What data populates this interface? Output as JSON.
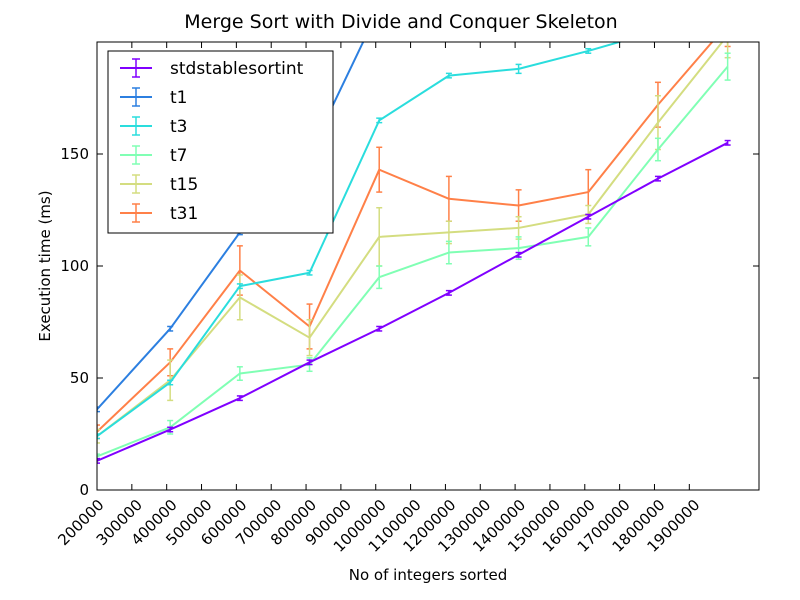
{
  "chart_data": {
    "type": "line",
    "title": "Merge Sort with Divide and Conquer Skeleton",
    "xlabel": "No of integers sorted",
    "ylabel": "Execution time (ms)",
    "xlim": [
      200000,
      2100000
    ],
    "ylim": [
      0,
      200
    ],
    "x_ticks": [
      200000,
      300000,
      400000,
      500000,
      600000,
      700000,
      800000,
      900000,
      1000000,
      1100000,
      1200000,
      1300000,
      1400000,
      1500000,
      1600000,
      1700000,
      1800000,
      1900000
    ],
    "x_tick_label_positions": [
      200000,
      310000,
      410000,
      510000,
      610000,
      710000,
      810000,
      910000,
      1010000,
      1110000,
      1210000,
      1310000,
      1410000,
      1510000,
      1610000,
      1710000,
      1810000,
      1910000
    ],
    "y_ticks": [
      0,
      50,
      100,
      150
    ],
    "legend_position": "top-left",
    "grid": false,
    "series": [
      {
        "name": "stdstablesortint",
        "color": "#8000ff",
        "x": [
          200000,
          410000,
          610000,
          810000,
          1010000,
          1210000,
          1410000,
          1610000,
          1810000,
          2010000
        ],
        "y": [
          13,
          27,
          41,
          57,
          72,
          88,
          105,
          122,
          139,
          155
        ],
        "err": [
          1,
          1,
          1,
          1,
          1,
          1,
          1,
          1,
          1,
          1
        ]
      },
      {
        "name": "t1",
        "color": "#2c7fe0",
        "x": [
          200000,
          410000,
          610000,
          810000,
          1010000
        ],
        "y": [
          36,
          72,
          115,
          150,
          215
        ],
        "err": [
          1,
          1,
          1,
          1,
          1
        ]
      },
      {
        "name": "t3",
        "color": "#2adddd",
        "x": [
          200000,
          410000,
          610000,
          810000,
          1010000,
          1210000,
          1410000,
          1610000,
          1810000
        ],
        "y": [
          24,
          48,
          91,
          97,
          165,
          185,
          188,
          196,
          205
        ],
        "err": [
          1,
          1,
          1,
          1,
          1,
          1,
          2,
          1,
          1
        ]
      },
      {
        "name": "t7",
        "color": "#80ffb4",
        "x": [
          200000,
          410000,
          610000,
          810000,
          1010000,
          1210000,
          1410000,
          1610000,
          1810000,
          2010000
        ],
        "y": [
          15,
          28,
          52,
          56,
          95,
          106,
          108,
          113,
          152,
          189
        ],
        "err": [
          1,
          3,
          3,
          3,
          5,
          5,
          5,
          4,
          5,
          6
        ]
      },
      {
        "name": "t15",
        "color": "#d4dd80",
        "x": [
          200000,
          410000,
          610000,
          810000,
          1010000,
          1210000,
          1410000,
          1610000,
          1810000,
          2010000
        ],
        "y": [
          24,
          49,
          86,
          68,
          113,
          115,
          117,
          123,
          164,
          203
        ],
        "err": [
          3,
          9,
          10,
          8,
          13,
          5,
          5,
          4,
          12,
          10
        ]
      },
      {
        "name": "t31",
        "color": "#ff8048",
        "x": [
          200000,
          410000,
          610000,
          810000,
          1010000,
          1210000,
          1410000,
          1610000,
          1810000,
          2010000
        ],
        "y": [
          26,
          57,
          98,
          73,
          143,
          130,
          127,
          133,
          172,
          208
        ],
        "err": [
          3,
          6,
          11,
          10,
          10,
          10,
          7,
          10,
          10,
          10
        ]
      }
    ]
  }
}
